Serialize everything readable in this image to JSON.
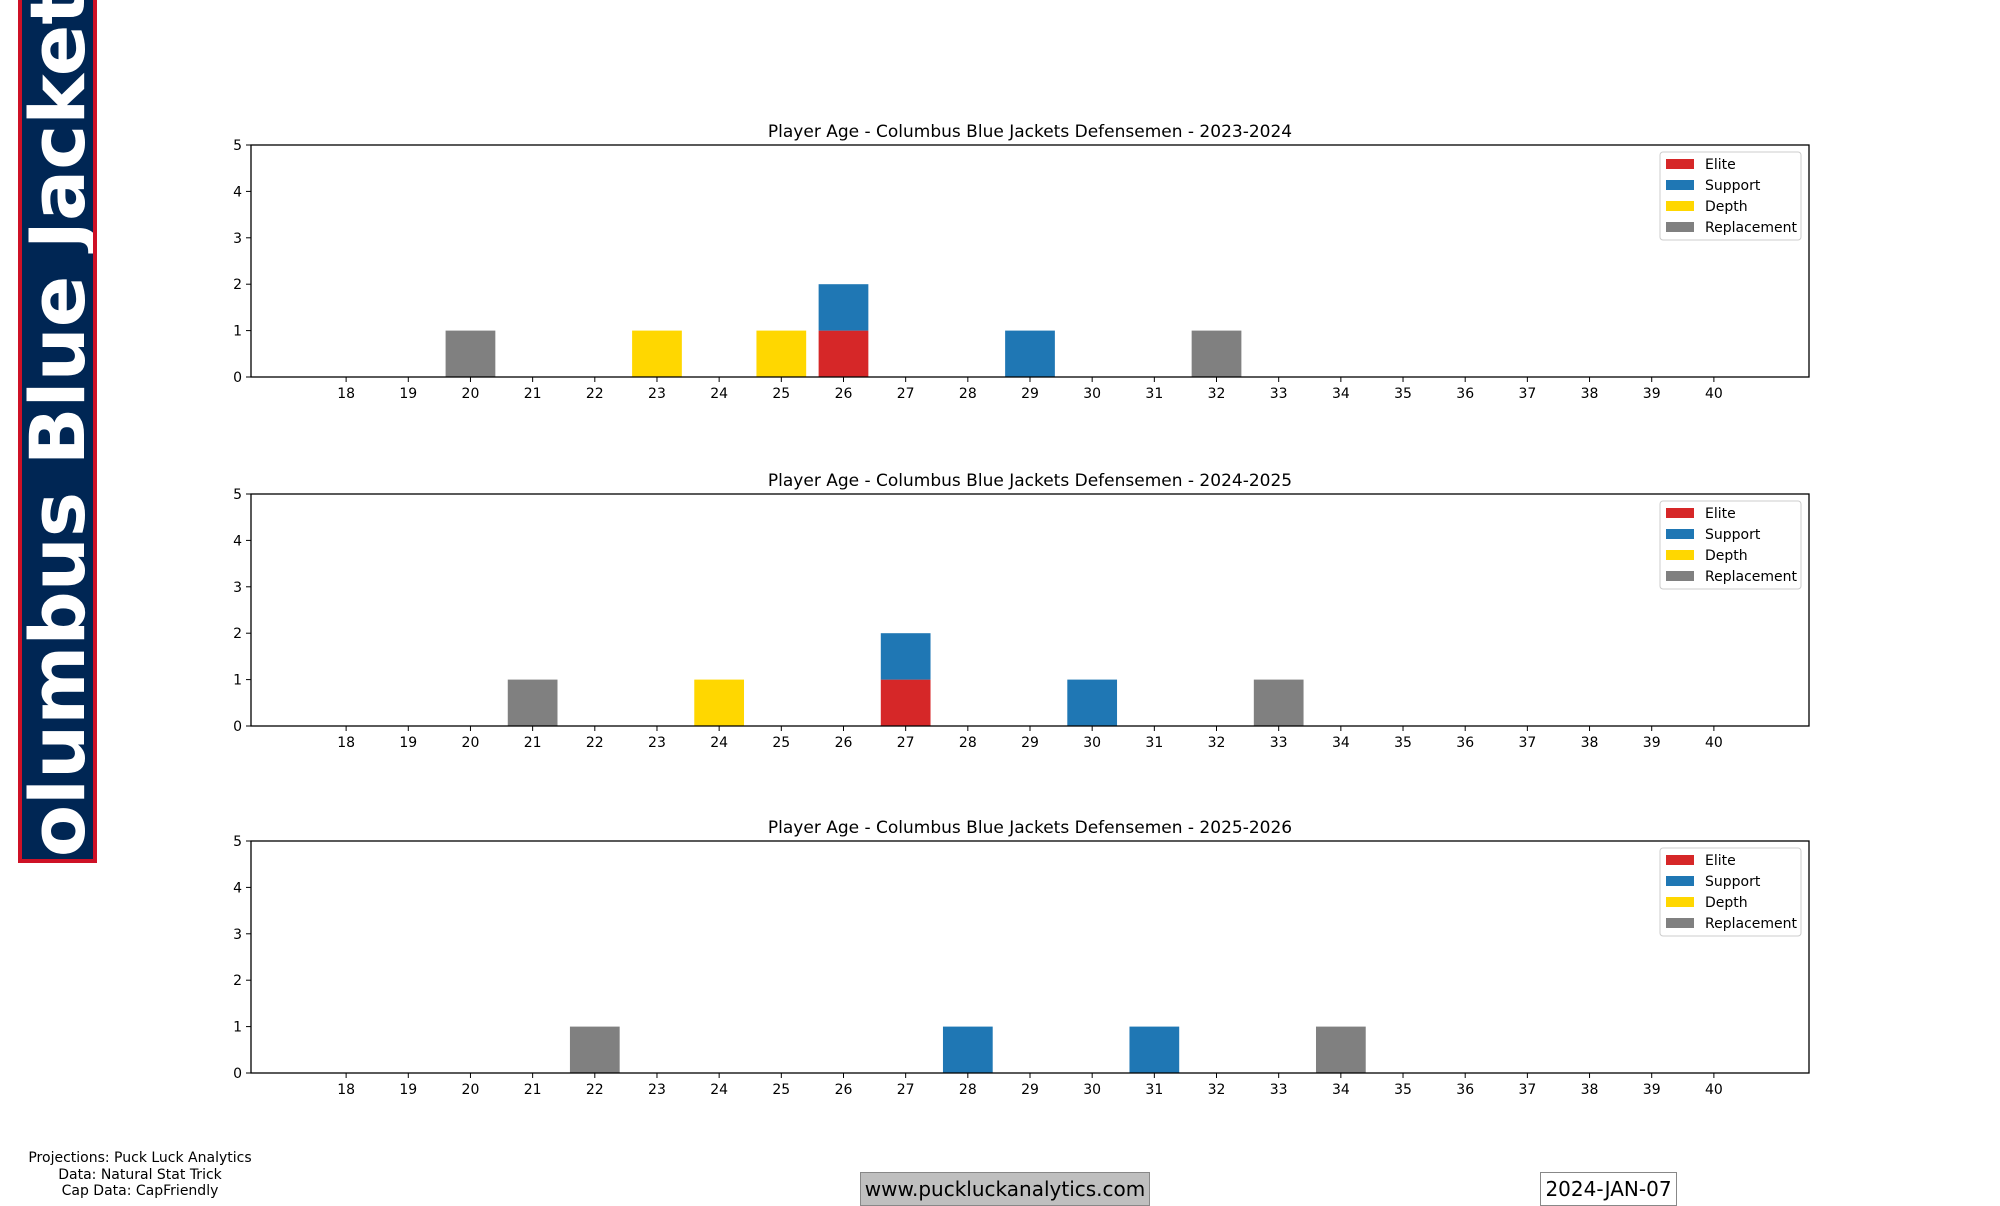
{
  "banner": {
    "text": "Columbus Blue Jackets",
    "bg_color": "#002654",
    "border_color": "#ce1126"
  },
  "footer": {
    "credits": [
      "Projections: Puck Luck Analytics",
      "Data: Natural Stat Trick",
      "Cap Data: CapFriendly"
    ],
    "url": "www.puckluckanalytics.com",
    "date": "2024-JAN-07"
  },
  "chart_data": [
    {
      "type": "bar",
      "stacked": true,
      "title": "Player Age - Columbus Blue Jackets Defensemen - 2023-2024",
      "categories": [
        18,
        19,
        20,
        21,
        22,
        23,
        24,
        25,
        26,
        27,
        28,
        29,
        30,
        31,
        32,
        33,
        34,
        35,
        36,
        37,
        38,
        39,
        40
      ],
      "ylim": [
        0,
        5
      ],
      "yticks": [
        0,
        1,
        2,
        3,
        4,
        5
      ],
      "legend": "top-right",
      "grid": false,
      "series": [
        {
          "name": "Elite",
          "color": "#d62728",
          "values": [
            0,
            0,
            0,
            0,
            0,
            0,
            0,
            0,
            1,
            0,
            0,
            0,
            0,
            0,
            0,
            0,
            0,
            0,
            0,
            0,
            0,
            0,
            0
          ]
        },
        {
          "name": "Support",
          "color": "#1f77b4",
          "values": [
            0,
            0,
            0,
            0,
            0,
            0,
            0,
            0,
            1,
            0,
            0,
            1,
            0,
            0,
            0,
            0,
            0,
            0,
            0,
            0,
            0,
            0,
            0
          ]
        },
        {
          "name": "Depth",
          "color": "#ffd700",
          "values": [
            0,
            0,
            0,
            0,
            0,
            1,
            0,
            1,
            0,
            0,
            0,
            0,
            0,
            0,
            0,
            0,
            0,
            0,
            0,
            0,
            0,
            0,
            0
          ]
        },
        {
          "name": "Replacement",
          "color": "#808080",
          "values": [
            0,
            0,
            1,
            0,
            0,
            0,
            0,
            0,
            0,
            0,
            0,
            0,
            0,
            0,
            1,
            0,
            0,
            0,
            0,
            0,
            0,
            0,
            0
          ]
        }
      ]
    },
    {
      "type": "bar",
      "stacked": true,
      "title": "Player Age - Columbus Blue Jackets Defensemen - 2024-2025",
      "categories": [
        18,
        19,
        20,
        21,
        22,
        23,
        24,
        25,
        26,
        27,
        28,
        29,
        30,
        31,
        32,
        33,
        34,
        35,
        36,
        37,
        38,
        39,
        40
      ],
      "ylim": [
        0,
        5
      ],
      "yticks": [
        0,
        1,
        2,
        3,
        4,
        5
      ],
      "legend": "top-right",
      "grid": false,
      "series": [
        {
          "name": "Elite",
          "color": "#d62728",
          "values": [
            0,
            0,
            0,
            0,
            0,
            0,
            0,
            0,
            0,
            1,
            0,
            0,
            0,
            0,
            0,
            0,
            0,
            0,
            0,
            0,
            0,
            0,
            0
          ]
        },
        {
          "name": "Support",
          "color": "#1f77b4",
          "values": [
            0,
            0,
            0,
            0,
            0,
            0,
            0,
            0,
            0,
            1,
            0,
            0,
            1,
            0,
            0,
            0,
            0,
            0,
            0,
            0,
            0,
            0,
            0
          ]
        },
        {
          "name": "Depth",
          "color": "#ffd700",
          "values": [
            0,
            0,
            0,
            0,
            0,
            0,
            1,
            0,
            0,
            0,
            0,
            0,
            0,
            0,
            0,
            0,
            0,
            0,
            0,
            0,
            0,
            0,
            0
          ]
        },
        {
          "name": "Replacement",
          "color": "#808080",
          "values": [
            0,
            0,
            0,
            1,
            0,
            0,
            0,
            0,
            0,
            0,
            0,
            0,
            0,
            0,
            0,
            1,
            0,
            0,
            0,
            0,
            0,
            0,
            0
          ]
        }
      ]
    },
    {
      "type": "bar",
      "stacked": true,
      "title": "Player Age - Columbus Blue Jackets Defensemen - 2025-2026",
      "categories": [
        18,
        19,
        20,
        21,
        22,
        23,
        24,
        25,
        26,
        27,
        28,
        29,
        30,
        31,
        32,
        33,
        34,
        35,
        36,
        37,
        38,
        39,
        40
      ],
      "ylim": [
        0,
        5
      ],
      "yticks": [
        0,
        1,
        2,
        3,
        4,
        5
      ],
      "legend": "top-right",
      "grid": false,
      "series": [
        {
          "name": "Elite",
          "color": "#d62728",
          "values": [
            0,
            0,
            0,
            0,
            0,
            0,
            0,
            0,
            0,
            0,
            0,
            0,
            0,
            0,
            0,
            0,
            0,
            0,
            0,
            0,
            0,
            0,
            0
          ]
        },
        {
          "name": "Support",
          "color": "#1f77b4",
          "values": [
            0,
            0,
            0,
            0,
            0,
            0,
            0,
            0,
            0,
            0,
            1,
            0,
            0,
            1,
            0,
            0,
            0,
            0,
            0,
            0,
            0,
            0,
            0
          ]
        },
        {
          "name": "Depth",
          "color": "#ffd700",
          "values": [
            0,
            0,
            0,
            0,
            0,
            0,
            0,
            0,
            0,
            0,
            0,
            0,
            0,
            0,
            0,
            0,
            0,
            0,
            0,
            0,
            0,
            0,
            0
          ]
        },
        {
          "name": "Replacement",
          "color": "#808080",
          "values": [
            0,
            0,
            0,
            0,
            1,
            0,
            0,
            0,
            0,
            0,
            0,
            0,
            0,
            0,
            0,
            0,
            1,
            0,
            0,
            0,
            0,
            0,
            0
          ]
        }
      ]
    }
  ]
}
